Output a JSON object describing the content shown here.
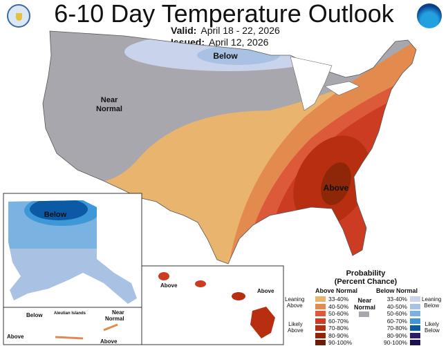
{
  "header": {
    "title": "6-10 Day Temperature Outlook",
    "valid_label": "Valid:",
    "valid_value": "April 18 - 22, 2026",
    "issued_label": "Issued:",
    "issued_value": "April 12, 2026"
  },
  "logos": {
    "left": "Department of Commerce seal",
    "right": "NOAA"
  },
  "map_labels": {
    "below": "Below",
    "near_normal_1": "Near",
    "near_normal_2": "Normal",
    "above": "Above"
  },
  "alaska": {
    "below": "Below"
  },
  "aleutians": {
    "title": "Aleutian Islands",
    "below": "Below",
    "above_1": "Above",
    "above_2": "Above",
    "near_1": "Near",
    "near_2": "Normal"
  },
  "hawaii": {
    "above_1": "Above",
    "above_2": "Above"
  },
  "legend": {
    "title_1": "Probability",
    "title_2": "(Percent Chance)",
    "above_header": "Above Normal",
    "below_header": "Below Normal",
    "near_1": "Near",
    "near_2": "Normal",
    "near_color": "#a7a7ad",
    "leaning_above_1": "Leaning",
    "leaning_above_2": "Above",
    "likely_above_1": "Likely",
    "likely_above_2": "Above",
    "leaning_below_1": "Leaning",
    "leaning_below_2": "Below",
    "likely_below_1": "Likely",
    "likely_below_2": "Below",
    "above": [
      {
        "range": "33-40%",
        "color": "#e8b46e"
      },
      {
        "range": "40-50%",
        "color": "#e38b4f"
      },
      {
        "range": "50-60%",
        "color": "#dc5a3a"
      },
      {
        "range": "60-70%",
        "color": "#cc3c22"
      },
      {
        "range": "70-80%",
        "color": "#b72e10"
      },
      {
        "range": "80-90%",
        "color": "#8e2608"
      },
      {
        "range": "90-100%",
        "color": "#6b1c06"
      }
    ],
    "below": [
      {
        "range": "33-40%",
        "color": "#c9d4ec"
      },
      {
        "range": "40-50%",
        "color": "#a9c2e4"
      },
      {
        "range": "50-60%",
        "color": "#7ab2e2"
      },
      {
        "range": "60-70%",
        "color": "#3e98d8"
      },
      {
        "range": "70-80%",
        "color": "#0c5aa6"
      },
      {
        "range": "80-90%",
        "color": "#2b1d6b"
      },
      {
        "range": "90-100%",
        "color": "#1b1152"
      }
    ]
  }
}
